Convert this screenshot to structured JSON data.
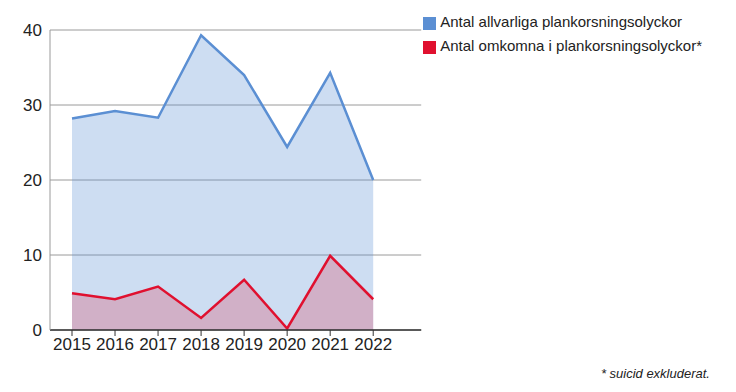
{
  "chart_data": {
    "type": "area",
    "categories": [
      "2015",
      "2016",
      "2017",
      "2018",
      "2019",
      "2020",
      "2021",
      "2022"
    ],
    "series": [
      {
        "name": "Antal allvarliga plankorsningsolyckor",
        "color": "#5b8fd3",
        "values": [
          28.2,
          29.2,
          28.3,
          39.3,
          34.0,
          24.4,
          34.3,
          20.0
        ]
      },
      {
        "name": "Antal omkomna i plankorsningsolyckor*",
        "color": "#e0102f",
        "values": [
          4.9,
          4.1,
          5.8,
          1.6,
          6.7,
          0.2,
          9.9,
          4.1
        ]
      }
    ],
    "ylim": [
      0,
      40
    ],
    "yticks": [
      0,
      10,
      20,
      30,
      40
    ],
    "grid": true,
    "legend": "top right",
    "annotations": [
      "* suicid exkluderat."
    ]
  }
}
